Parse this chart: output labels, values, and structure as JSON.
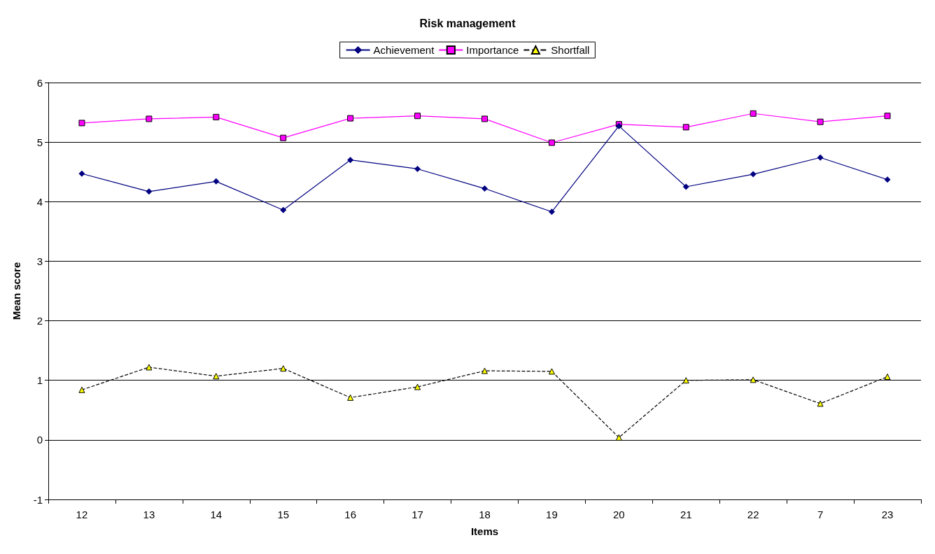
{
  "chart_data": {
    "type": "line",
    "title": "Risk management",
    "xlabel": "Items",
    "ylabel": "Mean score",
    "categories": [
      "12",
      "13",
      "14",
      "15",
      "16",
      "17",
      "18",
      "19",
      "20",
      "21",
      "22",
      "7",
      "23"
    ],
    "series": [
      {
        "name": "Achievement",
        "color": "#000080",
        "marker": "diamond",
        "line_style": "solid",
        "values": [
          4.47,
          4.17,
          4.34,
          3.86,
          4.7,
          4.55,
          4.22,
          3.83,
          5.27,
          4.25,
          4.46,
          4.74,
          4.37
        ]
      },
      {
        "name": "Importance",
        "color": "#ff00ff",
        "marker": "square",
        "line_style": "solid",
        "values": [
          5.32,
          5.39,
          5.42,
          5.07,
          5.4,
          5.44,
          5.39,
          4.99,
          5.3,
          5.25,
          5.48,
          5.34,
          5.44
        ]
      },
      {
        "name": "Shortfall",
        "color": "#000000",
        "marker": "triangle",
        "line_style": "dashed",
        "values": [
          0.84,
          1.22,
          1.07,
          1.2,
          0.71,
          0.89,
          1.16,
          1.15,
          0.04,
          1.0,
          1.01,
          0.61,
          1.06
        ]
      }
    ],
    "ylim": [
      -1,
      6
    ],
    "yticks": [
      -1,
      0,
      1,
      2,
      3,
      4,
      5,
      6
    ],
    "grid": "y",
    "legend": "top"
  }
}
